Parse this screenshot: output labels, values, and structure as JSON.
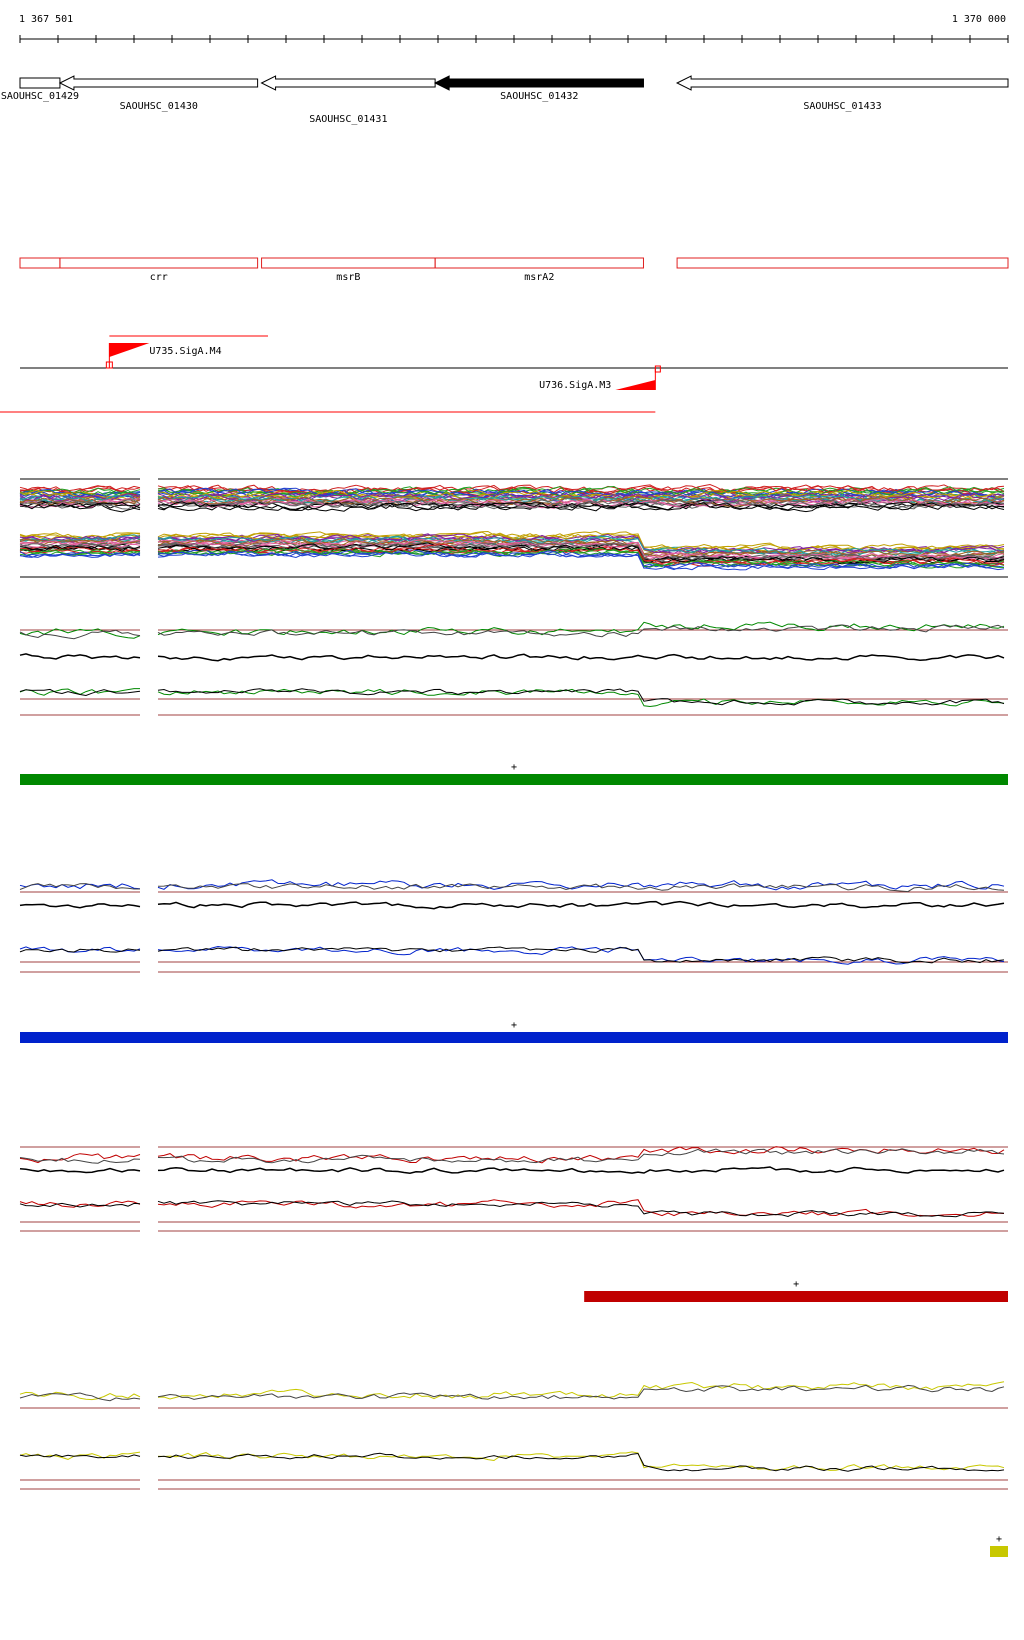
{
  "coordinates": {
    "start_label": "1 367 501",
    "end_label": "1 370 000",
    "start": 1367501,
    "end": 1370000
  },
  "genes": [
    {
      "id": "SAOUHSC_01429",
      "start": 1367501,
      "end": 1367602,
      "strand": "-",
      "highlighted": false,
      "row": 0
    },
    {
      "id": "SAOUHSC_01430",
      "start": 1367602,
      "end": 1368102,
      "strand": "-",
      "highlighted": false,
      "row": 1
    },
    {
      "id": "SAOUHSC_01431",
      "start": 1368112,
      "end": 1368551,
      "strand": "-",
      "highlighted": false,
      "row": 2
    },
    {
      "id": "SAOUHSC_01432",
      "start": 1368551,
      "end": 1369078,
      "strand": "-",
      "highlighted": true,
      "row": 0
    },
    {
      "id": "SAOUHSC_01433",
      "start": 1369163,
      "end": 1370000,
      "strand": "-",
      "highlighted": false,
      "row": 1
    }
  ],
  "gene_names": [
    {
      "name": "",
      "start": 1367501,
      "end": 1367602
    },
    {
      "name": "crr",
      "start": 1367602,
      "end": 1368102
    },
    {
      "name": "msrB",
      "start": 1368112,
      "end": 1368551
    },
    {
      "name": "msrA2",
      "start": 1368551,
      "end": 1369078
    },
    {
      "name": "",
      "start": 1369163,
      "end": 1370000
    }
  ],
  "promoters": [
    {
      "name": "U735.SigA.M4",
      "position": 1367727,
      "strand": "+"
    },
    {
      "name": "U736.SigA.M3",
      "position": 1369108,
      "strand": "-"
    }
  ],
  "colors": {
    "gene_outline": "#000000",
    "gene_highlight": "#000000",
    "name_box": "#e02020",
    "promoter": "#ff0000",
    "green": "#008800",
    "blue": "#0022cc",
    "red": "#c00000",
    "yellow": "#c8c800",
    "ref": "#a04040"
  },
  "segments": [
    {
      "color": "green",
      "start": 1367501,
      "end": 1370000,
      "strand_label": "+"
    },
    {
      "color": "blue",
      "start": 1367501,
      "end": 1370000,
      "strand_label": "+"
    },
    {
      "color": "red",
      "start": 1368928,
      "end": 1370000,
      "strand_label": "+"
    },
    {
      "color": "yellow",
      "start": 1369970,
      "end": 1370000,
      "strand_label": "+"
    }
  ]
}
